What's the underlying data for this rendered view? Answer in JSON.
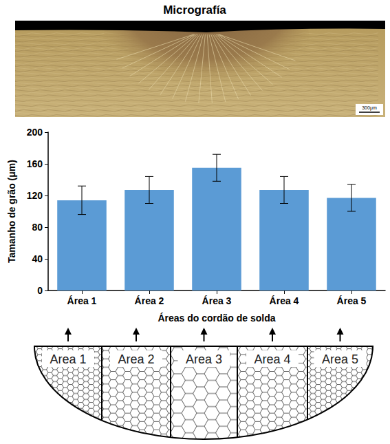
{
  "micrograph": {
    "title": "Micrografía",
    "scale_bar": "300μm"
  },
  "chart_data": {
    "type": "bar",
    "categories": [
      "Área 1",
      "Área 2",
      "Área 3",
      "Área 4",
      "Área 5"
    ],
    "values": [
      114,
      127,
      155,
      127,
      117
    ],
    "errors": [
      18,
      17,
      17,
      17,
      17
    ],
    "color": "#5b9bd5",
    "x_label": "Áreas do cordão de solda",
    "y_label": "Tamanho de grão (μm)",
    "ylim": [
      0,
      200
    ],
    "yticks": [
      0,
      40,
      80,
      120,
      160,
      200
    ],
    "grid": false
  },
  "diagram": {
    "areas": [
      "Area 1",
      "Area 2",
      "Area 3",
      "Area 4",
      "Area 5"
    ]
  }
}
